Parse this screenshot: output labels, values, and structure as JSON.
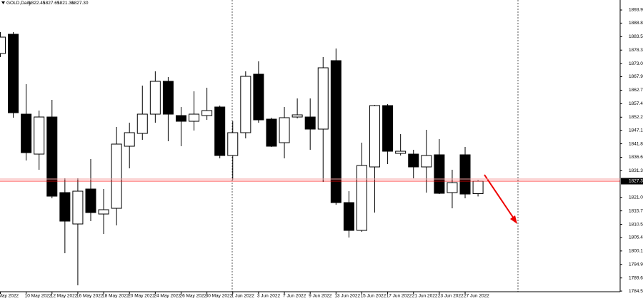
{
  "chart_data": {
    "type": "candlestick",
    "title": "GOLD,Daily",
    "categories": [
      "May 2022",
      null,
      "10 May 2022",
      null,
      "12 May 2022",
      null,
      "16 May 2022",
      null,
      "18 May 2022",
      null,
      "20 May 2022",
      null,
      "24 May 2022",
      null,
      "26 May 2022",
      null,
      "30 May 2022",
      null,
      "1 Jun 2022",
      null,
      "3 Jun 2022",
      null,
      "7 Jun 2022",
      null,
      "9 Jun 2022",
      null,
      "13 Jun 2022",
      null,
      "15 Jun 2022",
      null,
      "17 Jun 2022",
      null,
      "21 Jun 2022",
      null,
      "23 Jun 2022",
      null,
      "27 Jun 2022",
      null
    ],
    "open": [
      1876.97,
      1884.46,
      1853.38,
      1837.84,
      1852.27,
      1822.86,
      1810.65,
      1824.25,
      1814.53,
      1816.75,
      1840.9,
      1845.89,
      1853.38,
      1866.15,
      1852.83,
      1850.61,
      1852.83,
      1856.16,
      1837.29,
      1846.17,
      1868.92,
      1851.44,
      1842.28,
      1852.27,
      1852.27,
      1847.56,
      1874.2,
      1818.97,
      1808.15,
      1832.85,
      1856.71,
      1838.12,
      1837.84,
      1832.85,
      1837.57,
      1822.86,
      1837.57,
      1822.45
    ],
    "high": [
      1885.3,
      1885.3,
      1865.04,
      1854.77,
      1858.93,
      1828.41,
      1828.41,
      1835.9,
      1824.25,
      1848.39,
      1850.05,
      1864.48,
      1870.03,
      1867.81,
      1856.16,
      1862.26,
      1863.65,
      1856.71,
      1850.61,
      1870.03,
      1873.92,
      1852.0,
      1856.16,
      1859.49,
      1859.49,
      1875.58,
      1878.91,
      1823.41,
      1842.28,
      1856.99,
      1857.27,
      1845.61,
      1839.51,
      1847.28,
      1843.67,
      1831.74,
      1840.62,
      1827.65
    ],
    "low": [
      1875.58,
      1852.0,
      1835.35,
      1831.74,
      1820.64,
      1799.27,
      1786.78,
      1811.76,
      1806.76,
      1810.09,
      1832.29,
      1843.39,
      1850.05,
      1842.84,
      1840.9,
      1847.0,
      1851.16,
      1836.18,
      1827.85,
      1843.95,
      1850.05,
      1840.62,
      1836.18,
      1851.72,
      1839.51,
      1827.02,
      1818.14,
      1805.38,
      1807.6,
      1815.09,
      1833.96,
      1837.29,
      1828.41,
      1822.86,
      1822.3,
      1816.75,
      1820.64,
      1821.36
    ],
    "close": [
      1883.35,
      1853.94,
      1838.4,
      1852.27,
      1821.47,
      1811.76,
      1823.41,
      1815.09,
      1816.2,
      1841.73,
      1846.17,
      1853.38,
      1866.15,
      1853.38,
      1850.61,
      1853.38,
      1854.77,
      1837.29,
      1846.17,
      1868.09,
      1851.16,
      1840.9,
      1852.0,
      1853.11,
      1847.56,
      1871.42,
      1818.97,
      1808.15,
      1833.4,
      1856.71,
      1838.95,
      1838.95,
      1832.85,
      1837.29,
      1822.58,
      1826.74,
      1822.3,
      1827.3
    ],
    "bull_color": "#ffffff",
    "bear_color": "#000000",
    "price_line_color": "#ff0000",
    "ylim": [
      1784.29,
      1897.79
    ],
    "yticks": [
      {
        "value": 1893.9,
        "label": "1893.90"
      },
      {
        "value": 1888.8,
        "label": "1888.80"
      },
      {
        "value": 1883.55,
        "label": "1883.55"
      },
      {
        "value": 1878.3,
        "label": "1878.30"
      },
      {
        "value": 1873.05,
        "label": "1873.05"
      },
      {
        "value": 1867.95,
        "label": "1867.95"
      },
      {
        "value": 1862.7,
        "label": "1862.70"
      },
      {
        "value": 1857.45,
        "label": "1857.45"
      },
      {
        "value": 1852.2,
        "label": "1852.20"
      },
      {
        "value": 1847.1,
        "label": "1847.10"
      },
      {
        "value": 1841.85,
        "label": "1841.85"
      },
      {
        "value": 1836.6,
        "label": "1836.60"
      },
      {
        "value": 1831.35,
        "label": "1831.35"
      },
      {
        "value": 1821,
        "label": "1821.00"
      },
      {
        "value": 1815.75,
        "label": "1815.75"
      },
      {
        "value": 1810.5,
        "label": "1810.50"
      },
      {
        "value": 1805.4,
        "label": "1805.40"
      },
      {
        "value": 1800.15,
        "label": "1800.15"
      },
      {
        "value": 1794.9,
        "label": "1794.90"
      },
      {
        "value": 1789.65,
        "label": "1789.65"
      },
      {
        "value": 1784.55,
        "label": "1784.55"
      }
    ]
  }
}
